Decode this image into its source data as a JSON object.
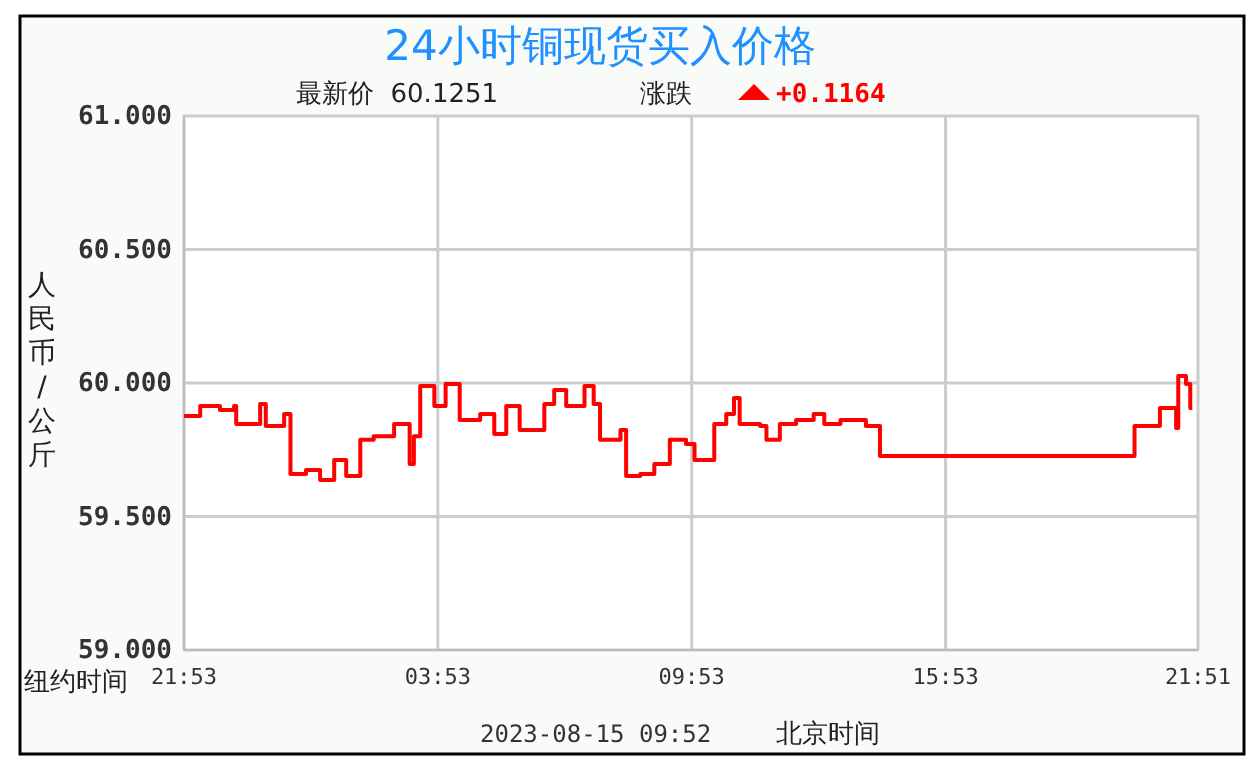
{
  "chart_data": {
    "type": "step",
    "title": "24小时铜现货买入价格",
    "subtitle": "最新价  60.1251",
    "ylabel": "人民币/公斤",
    "annotations": [
      "涨跌",
      "+0.1164",
      "纽约时间",
      "2023-08-15 09:52",
      "北京时间"
    ],
    "x": [
      "2023-08-13T21:53",
      "2023-08-13T22:16",
      "2023-08-13T22:44",
      "2023-08-13T23:04",
      "2023-08-13T23:07",
      "2023-08-13T23:41",
      "2023-08-13T23:49",
      "2023-08-14T00:15",
      "2023-08-14T00:24",
      "2023-08-14T00:46",
      "2023-08-14T01:06",
      "2023-08-14T01:26",
      "2023-08-14T01:43",
      "2023-08-14T02:03",
      "2023-08-14T02:22",
      "2023-08-14T02:51",
      "2023-08-14T03:13",
      "2023-08-14T03:19",
      "2023-08-14T03:28",
      "2023-08-14T03:48",
      "2023-08-14T04:04",
      "2023-08-14T04:24",
      "2023-08-14T04:53",
      "2023-08-14T05:13",
      "2023-08-14T05:30",
      "2023-08-14T05:49",
      "2023-08-14T06:24",
      "2023-08-14T06:38",
      "2023-08-14T06:55",
      "2023-08-14T07:21",
      "2023-08-14T07:34",
      "2023-08-14T07:43",
      "2023-08-14T08:12",
      "2023-08-14T08:20",
      "2023-08-14T08:40",
      "2023-08-14T09:00",
      "2023-08-14T09:22",
      "2023-08-14T09:45",
      "2023-08-14T09:57",
      "2023-08-14T10:19",
      "2023-08-14T10:25",
      "2023-08-14T10:42",
      "2023-08-14T10:53",
      "2023-08-14T11:01",
      "2023-08-14T11:30",
      "2023-08-14T11:39",
      "2023-08-14T11:58",
      "2023-08-14T12:21",
      "2023-08-14T12:46",
      "2023-08-14T13:01",
      "2023-08-14T13:24",
      "2023-08-14T14:00",
      "2023-08-14T14:20",
      "2023-08-14T20:21",
      "2023-08-14T20:57",
      "2023-08-14T21:03",
      "2023-08-14T21:20",
      "2023-08-14T21:23",
      "2023-08-14T21:34",
      "2023-08-14T21:40",
      "2023-08-14T21:43"
    ],
    "series": [
      {
        "color": "#ff0000",
        "values": [
          59.876,
          59.914,
          59.899,
          59.914,
          59.846,
          59.921,
          59.839,
          59.884,
          59.659,
          59.674,
          59.637,
          59.712,
          59.652,
          59.787,
          59.801,
          59.846,
          59.697,
          59.801,
          59.989,
          59.914,
          59.996,
          59.861,
          59.884,
          59.809,
          59.914,
          59.824,
          59.921,
          59.974,
          59.914,
          59.989,
          59.921,
          59.787,
          59.824,
          59.652,
          59.659,
          59.697,
          59.787,
          59.772,
          59.712,
          59.712,
          59.846,
          59.884,
          59.944,
          59.846,
          59.839,
          59.787,
          59.846,
          59.861,
          59.884,
          59.846,
          59.861,
          59.839,
          59.727,
          59.839,
          59.906,
          59.906,
          59.831,
          60.026,
          59.996,
          59.906,
          59.906
        ]
      }
    ],
    "xlim": [
      "2023-08-13T21:53",
      "2023-08-14T21:51"
    ],
    "xticks": [
      {
        "value": "2023-08-13T21:53",
        "label": "21:53"
      },
      {
        "value": "2023-08-14T03:53",
        "label": "03:53"
      },
      {
        "value": "2023-08-14T09:53",
        "label": "09:53"
      },
      {
        "value": "2023-08-14T15:53",
        "label": "15:53"
      },
      {
        "value": "2023-08-14T21:51",
        "label": "21:51"
      }
    ],
    "ylim": [
      59,
      61
    ],
    "yticks": [
      {
        "value": 59,
        "label": "59.000"
      },
      {
        "value": 59.5,
        "label": "59.500"
      },
      {
        "value": 60,
        "label": "60.000"
      },
      {
        "value": 60.5,
        "label": "60.500"
      },
      {
        "value": 61,
        "label": "61.000"
      }
    ],
    "grid": true
  }
}
